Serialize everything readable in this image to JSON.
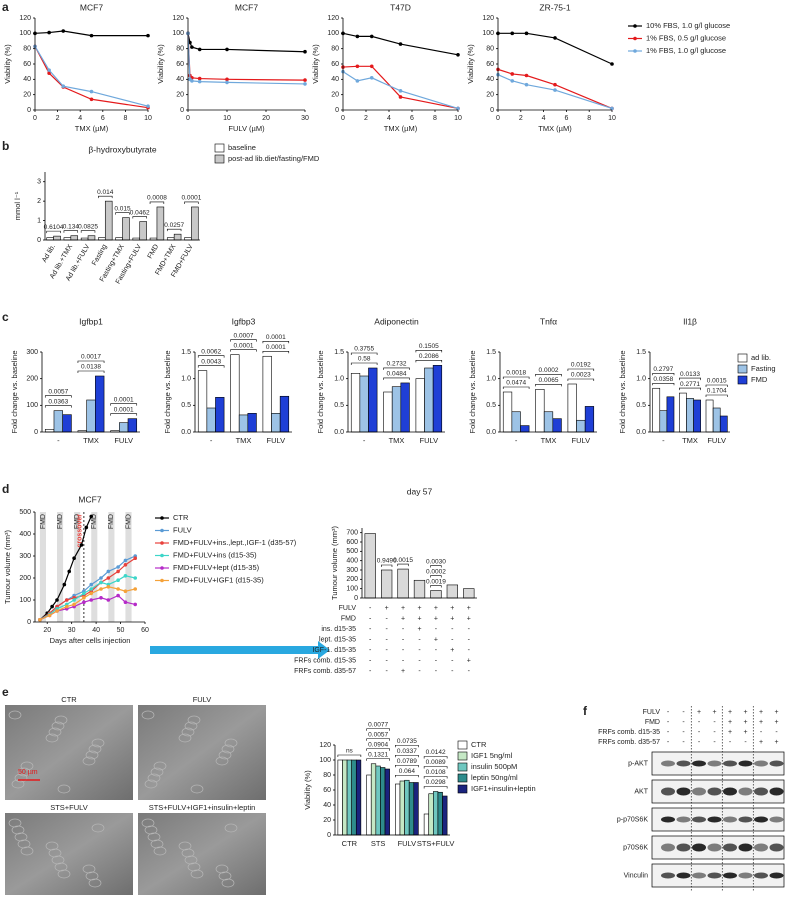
{
  "panel_labels": [
    "a",
    "b",
    "c",
    "d",
    "e",
    "f"
  ],
  "chart_data": [
    {
      "type": "line",
      "title": "MCF7",
      "x_label": "TMX (µM)",
      "y_label": "Viability (%)",
      "x": [
        0,
        1.25,
        2.5,
        5,
        10
      ],
      "xlim": [
        0,
        10
      ],
      "xticks": [
        0,
        2,
        4,
        6,
        8,
        10
      ],
      "ylim": [
        0,
        120
      ],
      "yticks": [
        0,
        20,
        40,
        60,
        80,
        100,
        120
      ],
      "series": [
        {
          "color": "#000000",
          "values": [
            100,
            101,
            103,
            97,
            97
          ]
        },
        {
          "color": "#e41a1c",
          "values": [
            83,
            48,
            30,
            14,
            3
          ]
        },
        {
          "color": "#6fa8dc",
          "values": [
            83,
            52,
            31,
            24,
            5
          ]
        }
      ]
    },
    {
      "type": "line",
      "title": "MCF7",
      "x_label": "FULV (µM)",
      "y_label": "Viability (%)",
      "x": [
        0,
        0.5,
        1,
        3,
        10,
        30
      ],
      "xlim": [
        0,
        30
      ],
      "xticks": [
        0,
        10,
        20,
        30
      ],
      "ylim": [
        0,
        120
      ],
      "yticks": [
        0,
        20,
        40,
        60,
        80,
        100,
        120
      ],
      "series": [
        {
          "color": "#000000",
          "values": [
            100,
            88,
            82,
            79,
            79,
            76
          ]
        },
        {
          "color": "#e41a1c",
          "values": [
            100,
            45,
            42,
            41,
            40,
            39
          ]
        },
        {
          "color": "#6fa8dc",
          "values": [
            100,
            40,
            38,
            37,
            36,
            34
          ]
        }
      ]
    },
    {
      "type": "line",
      "title": "T47D",
      "x_label": "TMX (µM)",
      "y_label": "Viability (%)",
      "x": [
        0,
        1.25,
        2.5,
        5,
        10
      ],
      "xlim": [
        0,
        10
      ],
      "xticks": [
        0,
        2,
        4,
        6,
        8,
        10
      ],
      "ylim": [
        0,
        120
      ],
      "yticks": [
        0,
        20,
        40,
        60,
        80,
        100,
        120
      ],
      "series": [
        {
          "color": "#000000",
          "values": [
            100,
            96,
            96,
            86,
            72
          ]
        },
        {
          "color": "#e41a1c",
          "values": [
            56,
            57,
            57,
            17,
            2
          ]
        },
        {
          "color": "#6fa8dc",
          "values": [
            50,
            38,
            42,
            25,
            2
          ]
        }
      ]
    },
    {
      "type": "line",
      "title": "ZR-75-1",
      "x_label": "TMX (µM)",
      "y_label": "Viability (%)",
      "x": [
        0,
        1.25,
        2.5,
        5,
        10
      ],
      "xlim": [
        0,
        10
      ],
      "xticks": [
        0,
        2,
        4,
        6,
        8,
        10
      ],
      "ylim": [
        0,
        120
      ],
      "yticks": [
        0,
        20,
        40,
        60,
        80,
        100,
        120
      ],
      "legend": "outside right",
      "series": [
        {
          "name": "10% FBS, 1.0 g/l glucose",
          "color": "#000000",
          "values": [
            100,
            100,
            100,
            94,
            60
          ]
        },
        {
          "name": "1% FBS, 0.5 g/l glucose",
          "color": "#e41a1c",
          "values": [
            53,
            47,
            45,
            33,
            2
          ]
        },
        {
          "name": "1% FBS, 1.0 g/l glucose",
          "color": "#6fa8dc",
          "values": [
            46,
            38,
            33,
            26,
            2
          ]
        }
      ]
    },
    {
      "type": "bar",
      "title": "β-hydroxybutyrate",
      "y_label": "mmol l⁻¹",
      "categories": [
        "Ad lib.",
        "Ad lib.+TMX",
        "Ad lib.+FULV",
        "Fasting",
        "Fasting+TMX",
        "Fasting+FULV",
        "FMD",
        "FMD+TMX",
        "FMD+FULV"
      ],
      "ylim": [
        0,
        3.5
      ],
      "yticks": [
        0,
        1,
        2,
        3
      ],
      "legend": "outside right",
      "series": [
        {
          "name": "baseline",
          "color": "#ffffff",
          "values": [
            0.12,
            0.12,
            0.1,
            0.12,
            0.12,
            0.1,
            0.1,
            0.12,
            0.12
          ]
        },
        {
          "name": "post-ad lib.diet/fasting/FMD",
          "color": "#c8c8c8",
          "values": [
            0.2,
            0.22,
            0.22,
            2.0,
            1.15,
            0.95,
            1.7,
            0.3,
            1.7
          ]
        }
      ],
      "annotations": [
        "0.6104",
        "0.134",
        "0.0825",
        "0.014",
        "0.015",
        "0.0462",
        "0.0008",
        "0.0257",
        "0.0001"
      ]
    },
    {
      "type": "bar",
      "title": "Igfbp1",
      "y_label": "Fold change vs. baseline",
      "categories": [
        "-",
        "TMX",
        "FULV"
      ],
      "ylim": [
        0,
        300
      ],
      "yticks": [
        0,
        100,
        200,
        300
      ],
      "series": [
        {
          "color": "#ffffff",
          "values": [
            10,
            5,
            5
          ]
        },
        {
          "color": "#9dc3e6",
          "values": [
            80,
            120,
            35
          ]
        },
        {
          "color": "#1f3fd6",
          "values": [
            65,
            210,
            50
          ]
        }
      ],
      "annotations": [
        "0.0363",
        "0.0057",
        "0.0138",
        "0.0017",
        "0.0001",
        "0.0001"
      ]
    },
    {
      "type": "bar",
      "title": "Igfbp3",
      "y_label": "Fold change vs. baseline",
      "categories": [
        "-",
        "TMX",
        "FULV"
      ],
      "ylim": [
        0,
        1.5
      ],
      "yticks": [
        {
          "value": 0,
          "label": "0.0"
        },
        0.5,
        {
          "value": 1,
          "label": "1.0"
        },
        1.5
      ],
      "series": [
        {
          "color": "#ffffff",
          "values": [
            1.15,
            1.45,
            1.42
          ]
        },
        {
          "color": "#9dc3e6",
          "values": [
            0.45,
            0.32,
            0.35
          ]
        },
        {
          "color": "#1f3fd6",
          "values": [
            0.65,
            0.35,
            0.67
          ]
        }
      ],
      "annotations": [
        "0.0043",
        "0.0062",
        "0.0001",
        "0.0007",
        "0.0001",
        "0.0001"
      ]
    },
    {
      "type": "bar",
      "title": "Adiponectin",
      "y_label": "Fold change vs. baseline",
      "categories": [
        "-",
        "TMX",
        "FULV"
      ],
      "ylim": [
        0,
        1.5
      ],
      "yticks": [
        {
          "value": 0,
          "label": "0.0"
        },
        0.5,
        {
          "value": 1,
          "label": "1.0"
        },
        1.5
      ],
      "series": [
        {
          "color": "#ffffff",
          "values": [
            1.1,
            0.75,
            1.0
          ]
        },
        {
          "color": "#9dc3e6",
          "values": [
            1.05,
            0.85,
            1.2
          ]
        },
        {
          "color": "#1f3fd6",
          "values": [
            1.2,
            0.92,
            1.25
          ]
        }
      ],
      "annotations": [
        "0.58",
        "0.3755",
        "0.0484",
        "0.2732",
        "0.2086",
        "0.1505"
      ]
    },
    {
      "type": "bar",
      "title": "Tnfα",
      "y_label": "Fold change vs. baseline",
      "categories": [
        "-",
        "TMX",
        "FULV"
      ],
      "ylim": [
        0,
        1.5
      ],
      "yticks": [
        {
          "value": 0,
          "label": "0.0"
        },
        0.5,
        {
          "value": 1,
          "label": "1.0"
        },
        1.5
      ],
      "series": [
        {
          "color": "#ffffff",
          "values": [
            0.75,
            0.8,
            0.9
          ]
        },
        {
          "color": "#9dc3e6",
          "values": [
            0.38,
            0.38,
            0.22
          ]
        },
        {
          "color": "#1f3fd6",
          "values": [
            0.12,
            0.25,
            0.48
          ]
        }
      ],
      "annotations": [
        "0.0474",
        "0.0018",
        "0.0065",
        "0.0002",
        "0.0023",
        "0.0192"
      ]
    },
    {
      "type": "bar",
      "title": "Il1β",
      "y_label": "Fold change vs. baseline",
      "categories": [
        "-",
        "TMX",
        "FULV"
      ],
      "ylim": [
        0,
        1.5
      ],
      "yticks": [
        {
          "value": 0,
          "label": "0.0"
        },
        0.5,
        {
          "value": 1,
          "label": "1.0"
        },
        1.5
      ],
      "legend": "outside right",
      "series": [
        {
          "name": "ad lib.",
          "color": "#ffffff",
          "values": [
            0.82,
            0.73,
            0.6
          ]
        },
        {
          "name": "Fasting",
          "color": "#9dc3e6",
          "values": [
            0.4,
            0.63,
            0.45
          ]
        },
        {
          "name": "FMD",
          "color": "#1f3fd6",
          "values": [
            0.66,
            0.6,
            0.3
          ]
        }
      ],
      "annotations": [
        "0.0358",
        "0.2797",
        "0.2771",
        "0.0133",
        "0.1704",
        "0.0015"
      ]
    },
    {
      "type": "line",
      "title": "MCF7",
      "x_label": "Days after cells injection",
      "y_label": "Tumour volume (mm³)",
      "xlim": [
        15,
        60
      ],
      "xticks": [
        20,
        30,
        40,
        50,
        60
      ],
      "ylim": [
        0,
        500
      ],
      "yticks": [
        0,
        100,
        200,
        300,
        400,
        500
      ],
      "legend": "outside right",
      "cycle_labels": [
        "FMD",
        "FMD",
        "FMD",
        "FMD",
        "FMD",
        "FMD"
      ],
      "crossover_label": "crossover",
      "series": [
        {
          "name": "CTR",
          "color": "#000000",
          "x": [
            17,
            20,
            22,
            24,
            27,
            29,
            31,
            34,
            36,
            38
          ],
          "values": [
            10,
            40,
            70,
            100,
            170,
            230,
            290,
            350,
            430,
            480
          ]
        },
        {
          "name": "FULV",
          "color": "#5b9bd5",
          "x": [
            17,
            21,
            24,
            28,
            31,
            35,
            38,
            42,
            45,
            49,
            52,
            56
          ],
          "values": [
            10,
            40,
            70,
            100,
            120,
            140,
            170,
            200,
            230,
            250,
            280,
            300
          ]
        },
        {
          "name": "FMD+FULV+ins.,lept.,IGF-1 (d35-57)",
          "color": "#e8413c",
          "x": [
            17,
            21,
            24,
            28,
            31,
            35,
            38,
            42,
            45,
            49,
            52,
            56
          ],
          "values": [
            10,
            40,
            70,
            100,
            110,
            120,
            140,
            180,
            200,
            230,
            260,
            290
          ]
        },
        {
          "name": "FMD+FULV+ins (d15-35)",
          "color": "#3dd6c9",
          "x": [
            17,
            21,
            24,
            28,
            31,
            35,
            38,
            42,
            45,
            49,
            52,
            56
          ],
          "values": [
            10,
            35,
            60,
            80,
            100,
            130,
            150,
            180,
            170,
            190,
            210,
            200
          ]
        },
        {
          "name": "FMD+FULV+lept (d15-35)",
          "color": "#b52bc8",
          "x": [
            17,
            21,
            24,
            28,
            31,
            35,
            38,
            42,
            45,
            49,
            52,
            56
          ],
          "values": [
            10,
            30,
            50,
            60,
            70,
            90,
            100,
            110,
            100,
            120,
            90,
            80
          ]
        },
        {
          "name": "FMD+FULV+IGF1 (d15-35)",
          "color": "#f5a23a",
          "x": [
            17,
            21,
            24,
            28,
            31,
            35,
            38,
            42,
            45,
            49,
            52,
            56
          ],
          "values": [
            10,
            30,
            50,
            70,
            80,
            110,
            130,
            150,
            160,
            150,
            140,
            150
          ]
        }
      ]
    },
    {
      "type": "bar",
      "title": "day 57",
      "y_label": "Tumour volume (mm³)",
      "categories": [
        null,
        null,
        null,
        null,
        null,
        null,
        null
      ],
      "values": [
        690,
        300,
        310,
        190,
        80,
        140,
        100
      ],
      "color": "#d9d9d9",
      "ylim": [
        0,
        750
      ],
      "yticks": [
        0,
        100,
        200,
        300,
        400,
        500,
        600,
        700
      ],
      "annotations": [
        "0.0019",
        "0.0002",
        "0.0030",
        "0.9496",
        "0.0015"
      ],
      "table": {
        "rows": [
          {
            "label": "FULV",
            "cells": [
              "-",
              "+",
              "+",
              "+",
              "+",
              "+",
              "+"
            ]
          },
          {
            "label": "FMD",
            "cells": [
              "-",
              "-",
              "+",
              "+",
              "+",
              "+",
              "+"
            ]
          },
          {
            "label": "ins. d15-35",
            "cells": [
              "-",
              "-",
              "-",
              "+",
              "-",
              "-",
              "-"
            ]
          },
          {
            "label": "lept. d15-35",
            "cells": [
              "-",
              "-",
              "-",
              "-",
              "+",
              "-",
              "-"
            ]
          },
          {
            "label": "IGF-1. d15-35",
            "cells": [
              "-",
              "-",
              "-",
              "-",
              "-",
              "+",
              "-"
            ]
          },
          {
            "label": "FRFs comb. d15-35",
            "cells": [
              "-",
              "-",
              "-",
              "-",
              "-",
              "-",
              "+"
            ]
          },
          {
            "label": "FRFs comb. d35-57",
            "cells": [
              "-",
              "-",
              "+",
              "-",
              "-",
              "-",
              "-"
            ]
          }
        ]
      }
    },
    {
      "type": "bar",
      "y_label": "Viability (%)",
      "categories": [
        "CTR",
        "STS",
        "FULV",
        "STS+FULV"
      ],
      "ylim": [
        0,
        120
      ],
      "yticks": [
        0,
        20,
        40,
        60,
        80,
        100,
        120
      ],
      "legend": "outside right",
      "series": [
        {
          "name": "CTR",
          "color": "#ffffff",
          "values": [
            100,
            80,
            68,
            28
          ]
        },
        {
          "name": "IGF1 5ng/ml",
          "color": "#c5e8c5",
          "values": [
            100,
            95,
            72,
            55
          ]
        },
        {
          "name": "insulin 500pM",
          "color": "#6fc7c0",
          "values": [
            100,
            92,
            73,
            58
          ]
        },
        {
          "name": "leptin 50ng/ml",
          "color": "#2e8c8c",
          "values": [
            100,
            90,
            70,
            57
          ]
        },
        {
          "name": "IGF1+insulin+leptin",
          "color": "#1a237e",
          "values": [
            100,
            88,
            70,
            52
          ]
        }
      ],
      "annotations": [
        "ns",
        "0.1321",
        "0.0904",
        "0.0057",
        "0.0077",
        "0.064",
        "0.0789",
        "0.0337",
        "0.0735",
        "0.0298",
        "0.0108",
        "0.0089",
        "0.0142"
      ]
    }
  ],
  "images": [
    {
      "label": "CTR"
    },
    {
      "label": "FULV"
    },
    {
      "label": "STS+FULV"
    },
    {
      "label": "STS+FULV+IGF1+insulin+leptin"
    }
  ],
  "scale_bar": "50 µm",
  "western_blot": {
    "conditions": [
      {
        "label": "FULV",
        "cells": [
          "-",
          "-",
          "+",
          "+",
          "+",
          "+",
          "+",
          "+"
        ]
      },
      {
        "label": "FMD",
        "cells": [
          "-",
          "-",
          "-",
          "-",
          "+",
          "+",
          "+",
          "+"
        ]
      },
      {
        "label": "FRFs comb. d15-35",
        "cells": [
          "-",
          "-",
          "-",
          "-",
          "+",
          "+",
          "-",
          "-"
        ]
      },
      {
        "label": "FRFs comb. d35-57",
        "cells": [
          "-",
          "-",
          "-",
          "-",
          "-",
          "-",
          "+",
          "+"
        ]
      }
    ],
    "bands": [
      "p-AKT",
      "AKT",
      "p-p70S6K",
      "p70S6K",
      "Vinculin"
    ]
  }
}
